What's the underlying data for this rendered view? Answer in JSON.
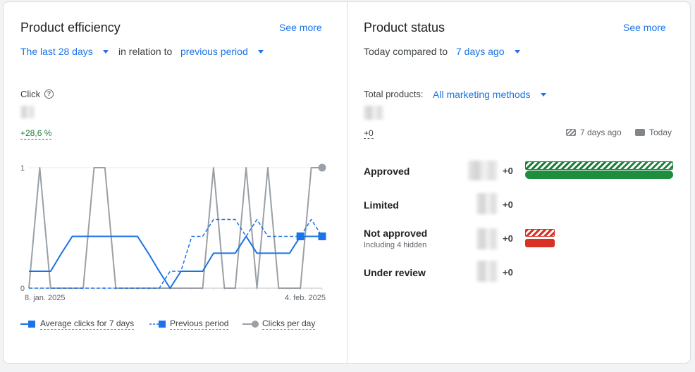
{
  "efficiency": {
    "title": "Product efficiency",
    "see_more": "See more",
    "period": "The last 28 days",
    "relation": "in relation to",
    "compare": "previous period",
    "metric_label": "Click",
    "delta": "+28,6 %",
    "legend": {
      "avg": "Average clicks for 7 days",
      "prev": "Previous period",
      "daily": "Clicks per day"
    }
  },
  "status": {
    "title": "Product status",
    "see_more": "See more",
    "compared_prefix": "Today compared to",
    "compared_period": "7 days ago",
    "total_label": "Total products:",
    "total_filter": "All marketing methods",
    "total_delta": "+0",
    "legend_prev": "7 days ago",
    "legend_today": "Today",
    "rows": [
      {
        "label": "Approved",
        "sub": "",
        "delta": "+0"
      },
      {
        "label": "Limited",
        "sub": "",
        "delta": "+0"
      },
      {
        "label": "Not approved",
        "sub": "Including 4 hidden",
        "delta": "+0"
      },
      {
        "label": "Under review",
        "sub": "",
        "delta": "+0"
      }
    ],
    "colors": {
      "approved": "#1e8e3e",
      "not_approved": "#d93025"
    }
  },
  "chart_data": {
    "type": "line",
    "x": [
      "8. jan. 2025",
      "9",
      "10",
      "11",
      "12",
      "13",
      "14",
      "15",
      "16",
      "17",
      "18",
      "19",
      "20",
      "21",
      "22",
      "23",
      "24",
      "25",
      "26",
      "27",
      "28",
      "29",
      "30",
      "31",
      "1",
      "2",
      "3",
      "4. feb. 2025"
    ],
    "x_tick_labels": [
      "8. jan. 2025",
      "4. feb. 2025"
    ],
    "ylim": [
      0,
      1
    ],
    "y_ticks": [
      "0",
      "1"
    ],
    "grid": true,
    "series": [
      {
        "name": "Average clicks for 7 days",
        "style": "solid",
        "color": "#1a73e8",
        "marker": "square",
        "values": [
          0.14,
          0.14,
          0.14,
          0.29,
          0.43,
          0.43,
          0.43,
          0.43,
          0.43,
          0.43,
          0.43,
          0.29,
          0.14,
          0,
          0.14,
          0.14,
          0.14,
          0.29,
          0.29,
          0.29,
          0.43,
          0.29,
          0.29,
          0.29,
          0.29,
          0.43,
          0.43,
          0.43
        ]
      },
      {
        "name": "Previous period",
        "style": "dashed",
        "color": "#1a73e8",
        "marker": "square",
        "values": [
          0,
          0,
          0,
          0,
          0,
          0,
          0,
          0,
          0,
          0,
          0,
          0,
          0,
          0.14,
          0.14,
          0.43,
          0.43,
          0.57,
          0.57,
          0.57,
          0.43,
          0.57,
          0.43,
          0.43,
          0.43,
          0.43,
          0.57,
          0.43
        ]
      },
      {
        "name": "Clicks per day",
        "style": "solid",
        "color": "#9aa0a6",
        "marker": "circle",
        "values": [
          0,
          1,
          0,
          0,
          0,
          0,
          1,
          1,
          0,
          0,
          0,
          0,
          0,
          0,
          0,
          0,
          0,
          1,
          0,
          0,
          1,
          0,
          1,
          0,
          0,
          0,
          1,
          1
        ]
      }
    ]
  }
}
